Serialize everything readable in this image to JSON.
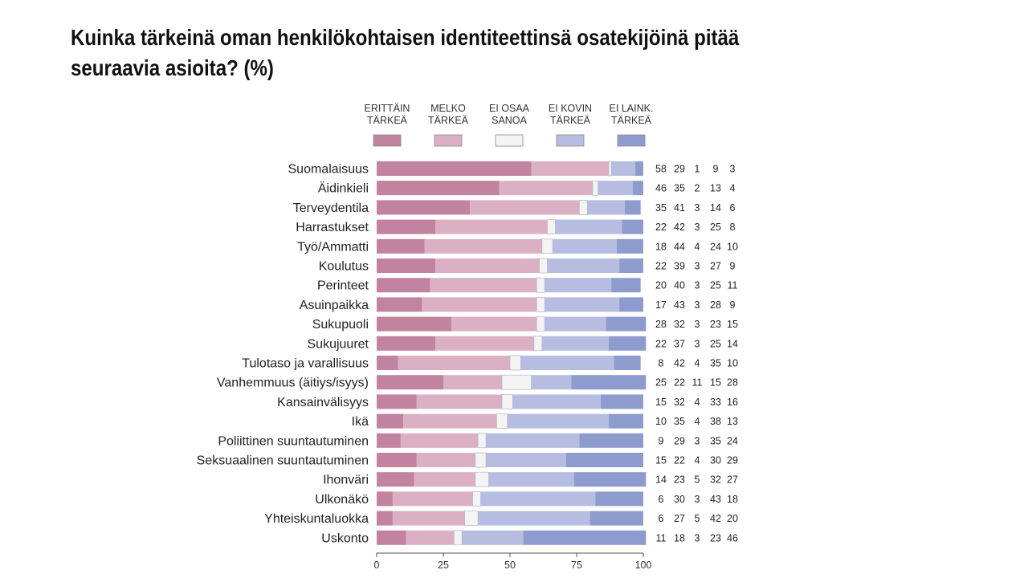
{
  "slide": {
    "title": "Kuinka tärkeinä oman henkilökohtaisen identiteettinsä osatekijöinä pitää seuraavia asioita? (%)"
  },
  "chart_data": {
    "type": "bar",
    "stacked": true,
    "orientation": "horizontal",
    "xlim": [
      0,
      100
    ],
    "xticks": [
      0,
      25,
      50,
      75,
      100
    ],
    "legend_position": "top",
    "categories": [
      "Suomalaisuus",
      "Äidinkieli",
      "Terveydentila",
      "Harrastukset",
      "Työ/Ammatti",
      "Koulutus",
      "Perinteet",
      "Asuinpaikka",
      "Sukupuoli",
      "Sukujuuret",
      "Tulotaso ja varallisuus",
      "Vanhemmuus (äitiys/isyys)",
      "Kansainvälisyys",
      "Ikä",
      "Poliittinen suuntautuminen",
      "Seksuaalinen suuntautuminen",
      "Ihonväri",
      "Ulkonäkö",
      "Yhteiskuntaluokka",
      "Uskonto"
    ],
    "series": [
      {
        "name": "ERITTÄIN TÄRKEÄ",
        "color": "#c1839f",
        "values": [
          58,
          46,
          35,
          22,
          18,
          22,
          20,
          17,
          28,
          22,
          8,
          25,
          15,
          10,
          9,
          15,
          14,
          6,
          6,
          11
        ]
      },
      {
        "name": "MELKO TÄRKEÄ",
        "color": "#dbb0c5",
        "values": [
          29,
          35,
          41,
          42,
          44,
          39,
          40,
          43,
          32,
          37,
          42,
          22,
          32,
          35,
          29,
          22,
          23,
          30,
          27,
          18
        ]
      },
      {
        "name": "EI OSAA SANOA",
        "color": "#f4f4f4",
        "values": [
          1,
          2,
          3,
          3,
          4,
          3,
          3,
          3,
          3,
          3,
          4,
          11,
          4,
          4,
          3,
          4,
          5,
          3,
          5,
          3
        ]
      },
      {
        "name": "EI KOVIN TÄRKEÄ",
        "color": "#b6bde0",
        "values": [
          9,
          13,
          14,
          25,
          24,
          27,
          25,
          28,
          23,
          25,
          35,
          15,
          33,
          38,
          35,
          30,
          32,
          43,
          42,
          23
        ]
      },
      {
        "name": "EI LAINK. TÄRKEÄ",
        "color": "#8e9bce",
        "values": [
          3,
          4,
          6,
          8,
          10,
          9,
          11,
          9,
          15,
          14,
          10,
          28,
          16,
          13,
          24,
          29,
          27,
          18,
          20,
          46
        ]
      }
    ]
  }
}
